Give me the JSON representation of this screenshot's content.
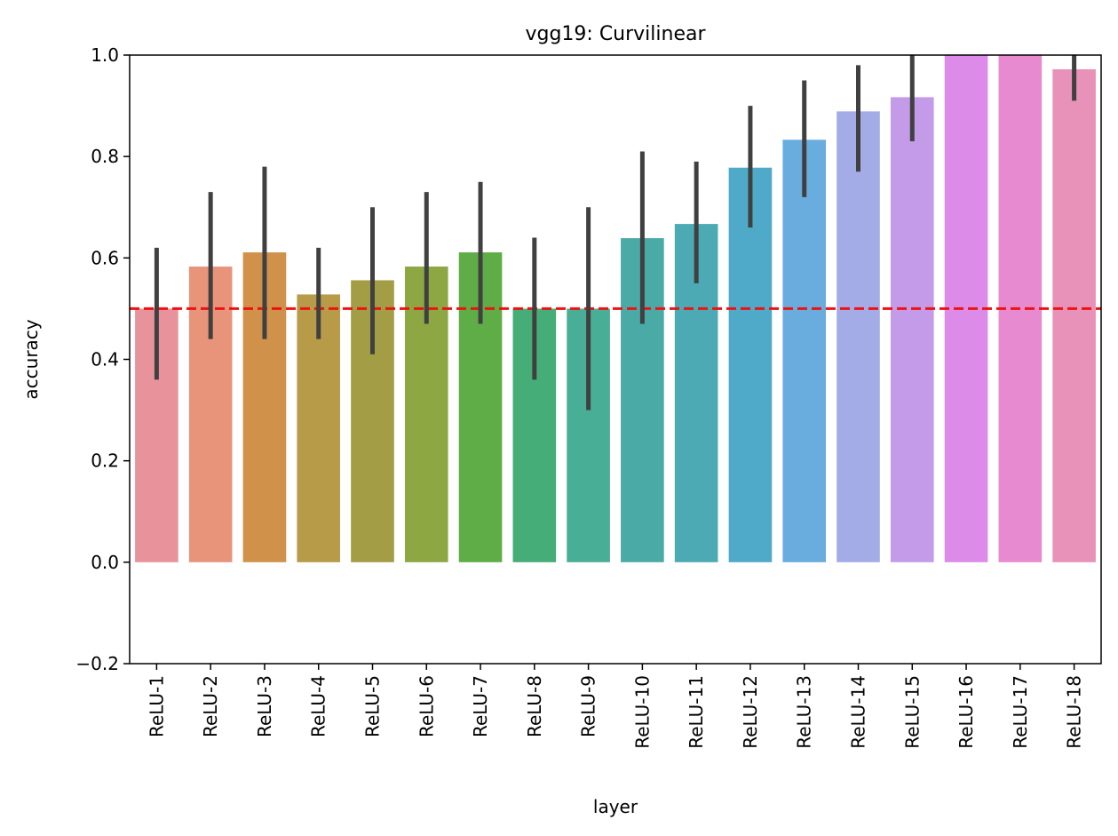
{
  "chart_data": {
    "type": "bar",
    "title": "vgg19: Curvilinear",
    "xlabel": "layer",
    "ylabel": "accuracy",
    "ylim": [
      -0.2,
      1.0
    ],
    "yticks": [
      -0.2,
      0.0,
      0.2,
      0.4,
      0.6,
      0.8,
      1.0
    ],
    "ytick_labels": [
      "−0.2",
      "0.0",
      "0.2",
      "0.4",
      "0.6",
      "0.8",
      "1.0"
    ],
    "categories": [
      "ReLU-1",
      "ReLU-2",
      "ReLU-3",
      "ReLU-4",
      "ReLU-5",
      "ReLU-6",
      "ReLU-7",
      "ReLU-8",
      "ReLU-9",
      "ReLU-10",
      "ReLU-11",
      "ReLU-12",
      "ReLU-13",
      "ReLU-14",
      "ReLU-15",
      "ReLU-16",
      "ReLU-17",
      "ReLU-18"
    ],
    "values": [
      0.5,
      0.583,
      0.611,
      0.528,
      0.556,
      0.583,
      0.611,
      0.5,
      0.5,
      0.639,
      0.667,
      0.778,
      0.833,
      0.889,
      0.917,
      1.0,
      1.0,
      0.972
    ],
    "error_low": [
      0.36,
      0.44,
      0.44,
      0.44,
      0.41,
      0.47,
      0.47,
      0.36,
      0.3,
      0.47,
      0.55,
      0.66,
      0.72,
      0.77,
      0.83,
      1.0,
      1.0,
      0.91
    ],
    "error_high": [
      0.62,
      0.73,
      0.78,
      0.62,
      0.7,
      0.73,
      0.75,
      0.64,
      0.7,
      0.81,
      0.79,
      0.9,
      0.95,
      0.98,
      1.0,
      1.0,
      1.0,
      1.0
    ],
    "colors": [
      "#e8939c",
      "#e7947a",
      "#d0924a",
      "#b89b48",
      "#a39d45",
      "#8da843",
      "#5fad46",
      "#45ae78",
      "#48ae95",
      "#4aaaa6",
      "#4caab5",
      "#4eaac8",
      "#69acde",
      "#a4ace8",
      "#c39be8",
      "#dd8be8",
      "#e88ad0",
      "#e891b9"
    ],
    "reference_line": {
      "value": 0.5,
      "color": "#ee1111",
      "style": "dashed"
    },
    "errorbar_color": "#404040",
    "grid": false,
    "legend": "none"
  }
}
